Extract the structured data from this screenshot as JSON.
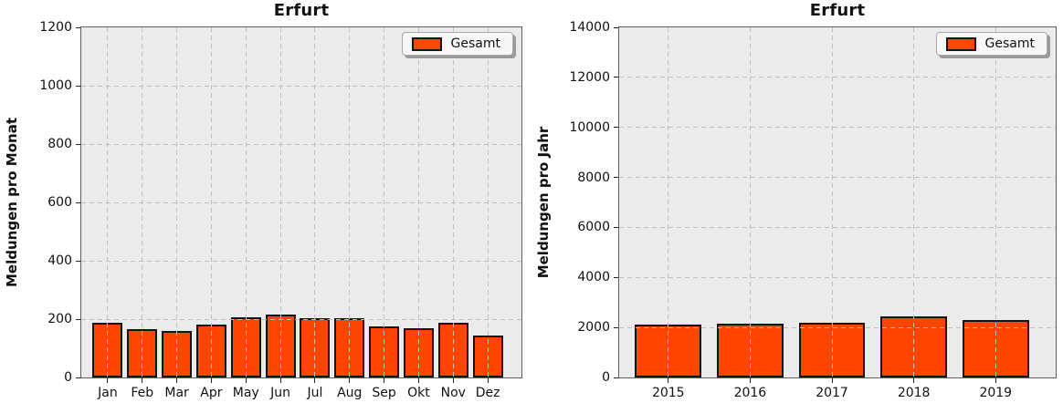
{
  "colors": {
    "bar_fill": "#FF4500",
    "bar_edge": "#141414",
    "plot_bg": "#EBEBEB",
    "grid": "#BFBFBF",
    "spine": "#606060",
    "text": "#111111",
    "legend_bg": "#F7F7F7",
    "legend_border": "#AAAAAA",
    "legend_shadow": "#9A9A9A"
  },
  "chart_data": [
    {
      "type": "bar",
      "title": "Erfurt",
      "xlabel": "",
      "ylabel": "Meldungen pro Monat",
      "categories": [
        "Jan",
        "Feb",
        "Mar",
        "Apr",
        "May",
        "Jun",
        "Jul",
        "Aug",
        "Sep",
        "Okt",
        "Nov",
        "Dez"
      ],
      "values": [
        186,
        166,
        158,
        180,
        205,
        216,
        203,
        202,
        176,
        170,
        189,
        144
      ],
      "ylim": [
        0,
        1200
      ],
      "yticks": [
        0,
        200,
        400,
        600,
        800,
        1000,
        1200
      ],
      "grid": "dashed, drawn above bars",
      "legend_label": "Gesamt",
      "legend_position": "upper right",
      "layout": {
        "x_pad_left_frac": 0.06,
        "x_pad_right_frac": 0.0765,
        "bar_width_frac": 0.87
      }
    },
    {
      "type": "bar",
      "title": "Erfurt",
      "xlabel": "",
      "ylabel": "Meldungen pro Jahr",
      "categories": [
        "2015",
        "2016",
        "2017",
        "2018",
        "2019"
      ],
      "values": [
        2110,
        2150,
        2180,
        2450,
        2290
      ],
      "ylim": [
        0,
        14000
      ],
      "yticks": [
        0,
        2000,
        4000,
        6000,
        8000,
        10000,
        12000,
        14000
      ],
      "grid": "dashed, drawn above bars",
      "legend_label": "Gesamt",
      "legend_position": "upper right",
      "layout": {
        "x_pad_left_frac": 0.1125,
        "x_pad_right_frac": 0.1375,
        "bar_width_frac": 0.81
      }
    }
  ]
}
